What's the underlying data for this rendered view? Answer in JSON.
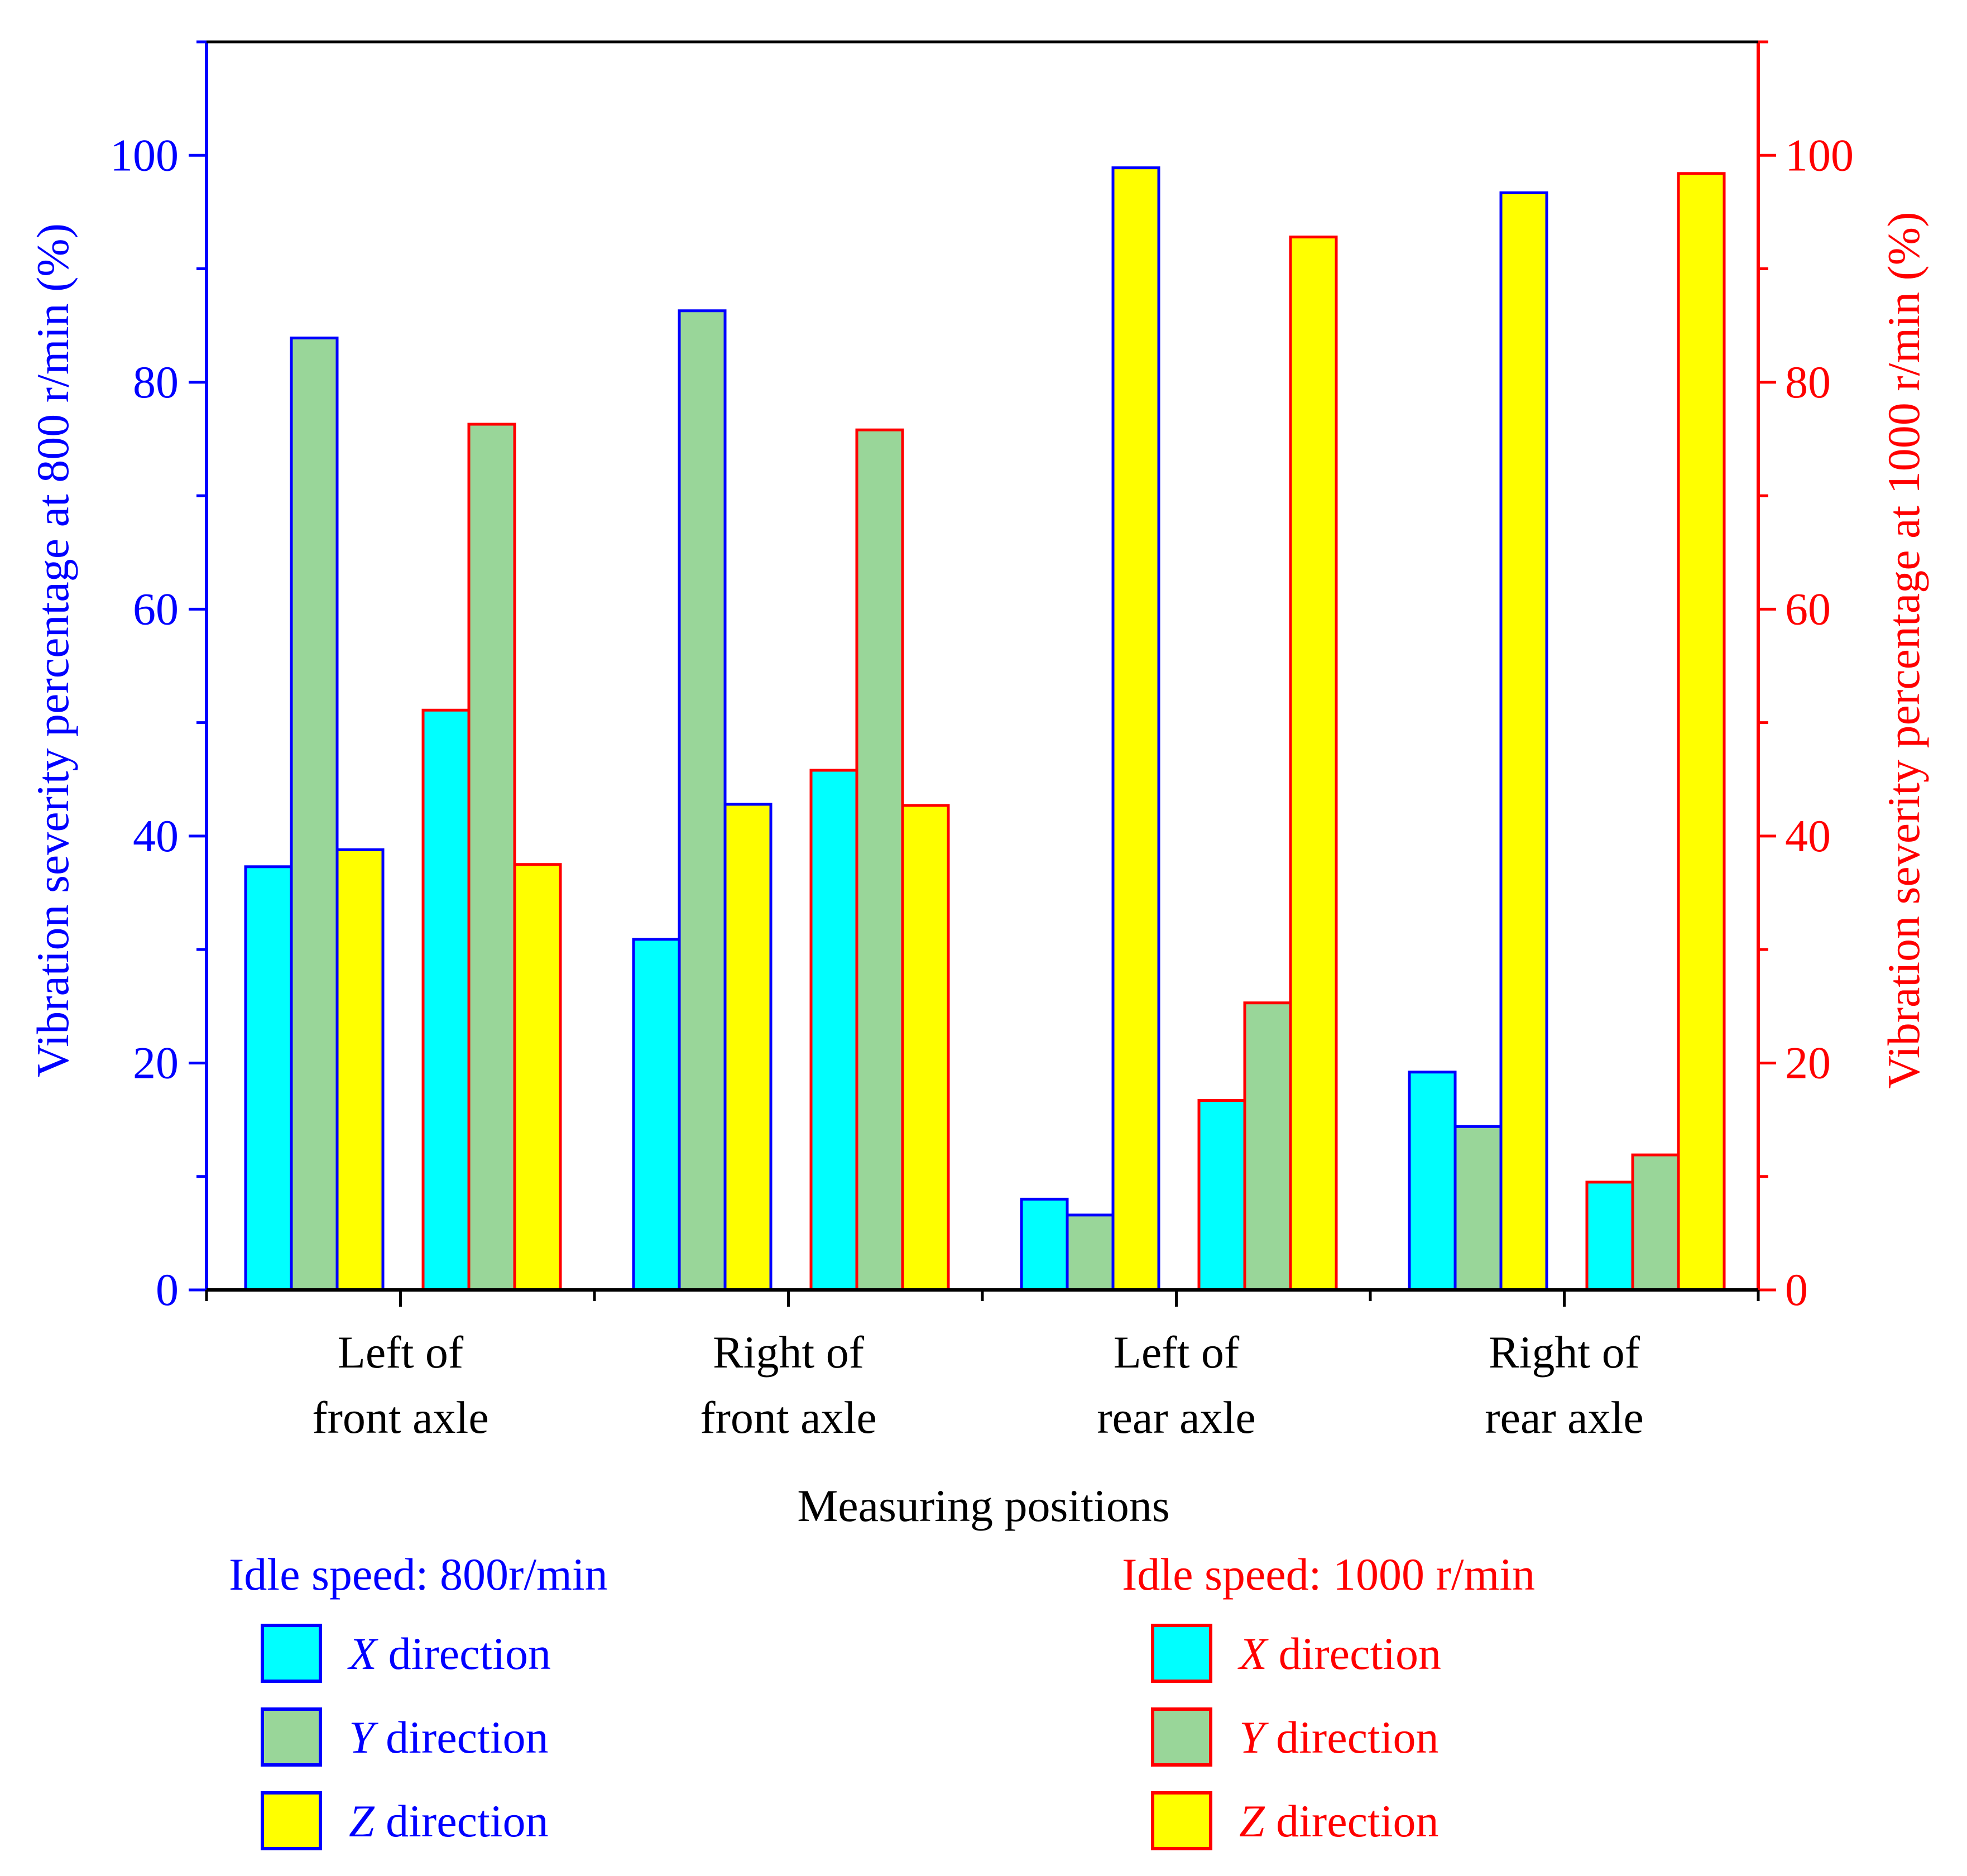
{
  "chart_data": {
    "type": "bar",
    "xlabel": "Measuring positions",
    "ylabel_left": "Vibration severity percentage at 800 r/min (%)",
    "ylabel_right": "Vibration severity percentage at 1000 r/min (%)",
    "ylim": [
      0,
      110
    ],
    "yticks": [
      0,
      20,
      40,
      60,
      80,
      100
    ],
    "grid": false,
    "categories": [
      [
        "Left of",
        "front axle"
      ],
      [
        "Right of",
        "front axle"
      ],
      [
        "Left of",
        "rear axle"
      ],
      [
        "Right of",
        "rear axle"
      ]
    ],
    "groups": [
      {
        "name": "Idle speed: 800r/min",
        "axis": "left",
        "color": "#0000ff",
        "series": [
          {
            "axis_letter": "X",
            "label": " direction",
            "fill": "#00ffff",
            "values": [
              37.3,
              30.9,
              8.0,
              19.2
            ]
          },
          {
            "axis_letter": "Y",
            "label": " direction",
            "fill": "#99d699",
            "values": [
              83.9,
              86.3,
              6.6,
              14.4
            ]
          },
          {
            "axis_letter": "Z",
            "label": " direction",
            "fill": "#ffff00",
            "values": [
              38.8,
              42.8,
              98.9,
              96.7
            ]
          }
        ]
      },
      {
        "name": "Idle speed: 1000 r/min",
        "axis": "right",
        "color": "#ff0000",
        "series": [
          {
            "axis_letter": "X",
            "label": " direction",
            "fill": "#00ffff",
            "values": [
              51.1,
              45.8,
              16.7,
              9.5
            ]
          },
          {
            "axis_letter": "Y",
            "label": " direction",
            "fill": "#99d699",
            "values": [
              76.3,
              75.8,
              25.3,
              11.9
            ]
          },
          {
            "axis_letter": "Z",
            "label": " direction",
            "fill": "#ffff00",
            "values": [
              37.5,
              42.7,
              92.8,
              98.4
            ]
          }
        ]
      }
    ]
  }
}
